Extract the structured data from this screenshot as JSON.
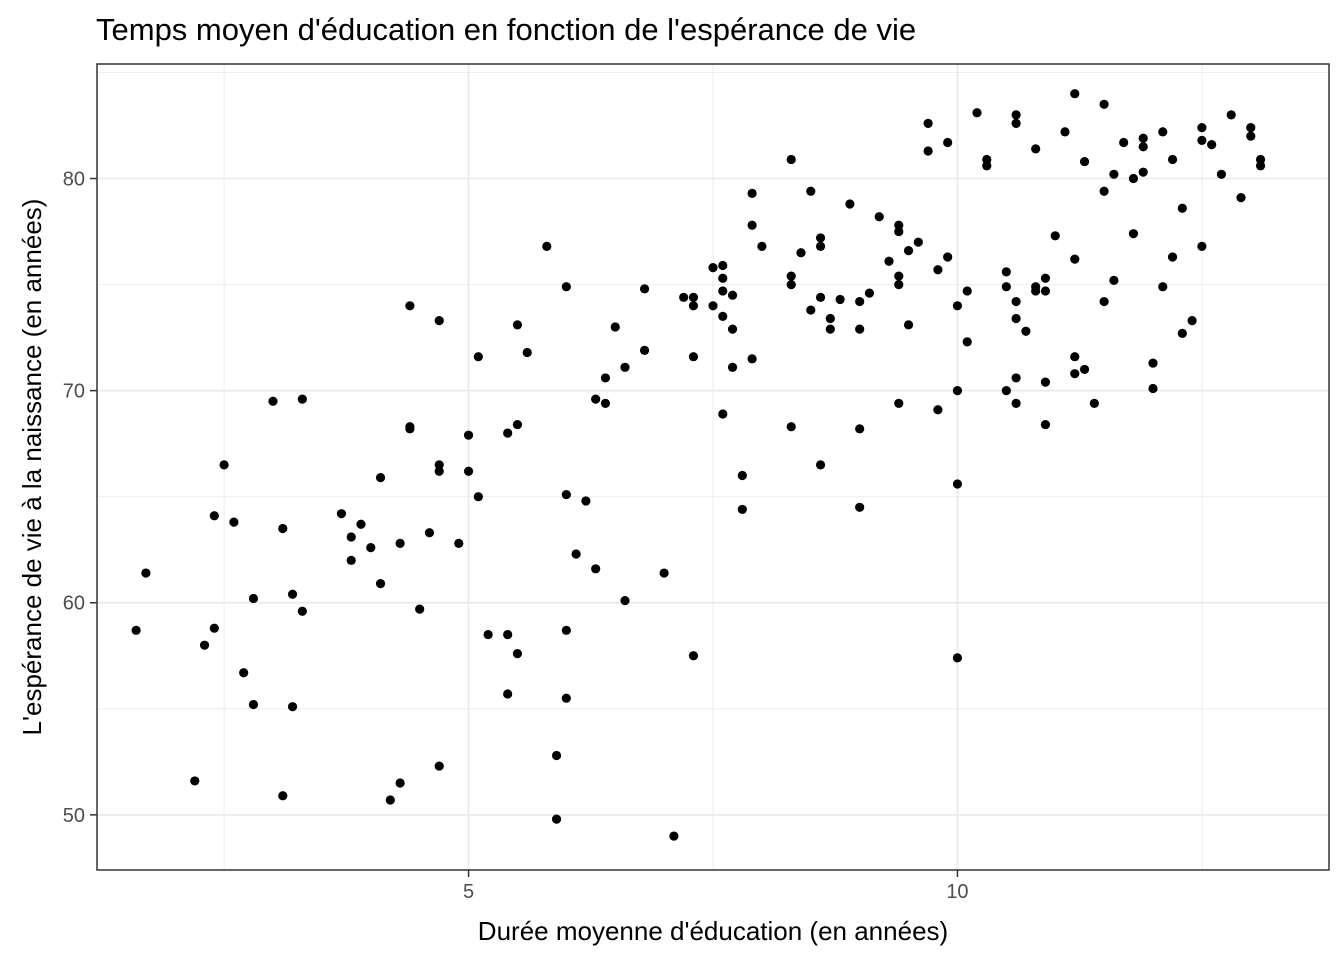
{
  "chart_data": {
    "type": "scatter",
    "title": "Temps moyen d'éducation en fonction de l'espérance de vie",
    "xlabel": "Durée moyenne d'éducation (en années)",
    "ylabel": "L'espérance de vie à la naissance (en années)",
    "xlim": [
      1.2,
      13.8
    ],
    "ylim": [
      47.4,
      85.4
    ],
    "x_ticks": [
      5,
      10
    ],
    "x_tick_labels": [
      "5",
      "10"
    ],
    "y_ticks": [
      50,
      60,
      70,
      80
    ],
    "y_tick_labels": [
      "50",
      "60",
      "70",
      "80"
    ],
    "x_minor_ticks": [
      2.5,
      7.5,
      12.5
    ],
    "y_minor_ticks": [
      55,
      65,
      75,
      85
    ],
    "grid": true,
    "point_color": "#000000",
    "panel_border_color": "#333333",
    "grid_color": "#ebebeb",
    "points": [
      [
        1.6,
        58.7
      ],
      [
        1.7,
        61.4
      ],
      [
        2.2,
        51.6
      ],
      [
        2.3,
        58.0
      ],
      [
        2.4,
        64.1
      ],
      [
        2.4,
        58.8
      ],
      [
        2.5,
        66.5
      ],
      [
        2.6,
        63.8
      ],
      [
        2.7,
        56.7
      ],
      [
        2.8,
        60.2
      ],
      [
        2.8,
        55.2
      ],
      [
        3.0,
        69.5
      ],
      [
        3.1,
        63.5
      ],
      [
        3.1,
        50.9
      ],
      [
        3.2,
        60.4
      ],
      [
        3.2,
        55.1
      ],
      [
        3.3,
        59.6
      ],
      [
        3.3,
        69.6
      ],
      [
        3.7,
        64.2
      ],
      [
        3.8,
        63.1
      ],
      [
        3.8,
        62.0
      ],
      [
        3.9,
        63.7
      ],
      [
        4.0,
        62.6
      ],
      [
        4.1,
        65.9
      ],
      [
        4.1,
        60.9
      ],
      [
        4.2,
        50.7
      ],
      [
        4.3,
        62.8
      ],
      [
        4.3,
        51.5
      ],
      [
        4.4,
        74.0
      ],
      [
        4.4,
        68.3
      ],
      [
        4.4,
        68.2
      ],
      [
        4.5,
        59.7
      ],
      [
        4.6,
        63.3
      ],
      [
        4.7,
        73.3
      ],
      [
        4.7,
        66.5
      ],
      [
        4.7,
        66.2
      ],
      [
        4.7,
        52.3
      ],
      [
        4.9,
        62.8
      ],
      [
        5.0,
        67.9
      ],
      [
        5.0,
        66.2
      ],
      [
        5.1,
        71.6
      ],
      [
        5.1,
        65.0
      ],
      [
        5.2,
        58.5
      ],
      [
        5.4,
        58.5
      ],
      [
        5.4,
        55.7
      ],
      [
        5.4,
        68.0
      ],
      [
        5.5,
        73.1
      ],
      [
        5.5,
        68.4
      ],
      [
        5.5,
        57.6
      ],
      [
        5.6,
        71.8
      ],
      [
        5.8,
        76.8
      ],
      [
        5.9,
        52.8
      ],
      [
        5.9,
        49.8
      ],
      [
        6.0,
        74.9
      ],
      [
        6.0,
        65.1
      ],
      [
        6.0,
        58.7
      ],
      [
        6.0,
        55.5
      ],
      [
        6.1,
        62.3
      ],
      [
        6.2,
        64.8
      ],
      [
        6.3,
        69.6
      ],
      [
        6.3,
        61.6
      ],
      [
        6.4,
        70.6
      ],
      [
        6.4,
        69.4
      ],
      [
        6.5,
        73.0
      ],
      [
        6.6,
        71.1
      ],
      [
        6.6,
        60.1
      ],
      [
        6.8,
        74.8
      ],
      [
        6.8,
        71.9
      ],
      [
        7.0,
        61.4
      ],
      [
        7.1,
        49.0
      ],
      [
        7.2,
        74.4
      ],
      [
        7.3,
        74.4
      ],
      [
        7.3,
        74.0
      ],
      [
        7.3,
        71.6
      ],
      [
        7.3,
        57.5
      ],
      [
        7.5,
        75.8
      ],
      [
        7.5,
        74.0
      ],
      [
        7.6,
        75.9
      ],
      [
        7.6,
        75.3
      ],
      [
        7.6,
        74.7
      ],
      [
        7.6,
        73.5
      ],
      [
        7.6,
        68.9
      ],
      [
        7.7,
        74.5
      ],
      [
        7.7,
        72.9
      ],
      [
        7.7,
        71.1
      ],
      [
        7.8,
        66.0
      ],
      [
        7.8,
        64.4
      ],
      [
        7.9,
        79.3
      ],
      [
        7.9,
        77.8
      ],
      [
        7.9,
        71.5
      ],
      [
        8.0,
        76.8
      ],
      [
        8.3,
        80.9
      ],
      [
        8.3,
        75.4
      ],
      [
        8.3,
        75.0
      ],
      [
        8.3,
        68.3
      ],
      [
        8.4,
        76.5
      ],
      [
        8.5,
        79.4
      ],
      [
        8.5,
        73.8
      ],
      [
        8.6,
        77.2
      ],
      [
        8.6,
        76.8
      ],
      [
        8.6,
        74.4
      ],
      [
        8.6,
        66.5
      ],
      [
        8.7,
        73.4
      ],
      [
        8.7,
        72.9
      ],
      [
        8.8,
        74.3
      ],
      [
        8.9,
        78.8
      ],
      [
        9.0,
        74.2
      ],
      [
        9.0,
        72.9
      ],
      [
        9.0,
        68.2
      ],
      [
        9.0,
        64.5
      ],
      [
        9.1,
        74.6
      ],
      [
        9.2,
        78.2
      ],
      [
        9.3,
        76.1
      ],
      [
        9.4,
        77.8
      ],
      [
        9.4,
        77.5
      ],
      [
        9.4,
        75.4
      ],
      [
        9.4,
        75.0
      ],
      [
        9.4,
        69.4
      ],
      [
        9.5,
        76.6
      ],
      [
        9.5,
        73.1
      ],
      [
        9.6,
        77.0
      ],
      [
        9.7,
        82.6
      ],
      [
        9.7,
        81.3
      ],
      [
        9.8,
        75.7
      ],
      [
        9.8,
        69.1
      ],
      [
        9.9,
        81.7
      ],
      [
        9.9,
        76.3
      ],
      [
        10.0,
        74.0
      ],
      [
        10.0,
        70.0
      ],
      [
        10.0,
        65.6
      ],
      [
        10.0,
        57.4
      ],
      [
        10.1,
        74.7
      ],
      [
        10.1,
        72.3
      ],
      [
        10.2,
        83.1
      ],
      [
        10.3,
        80.9
      ],
      [
        10.3,
        80.6
      ],
      [
        10.6,
        73.4
      ],
      [
        10.6,
        69.4
      ],
      [
        10.5,
        75.6
      ],
      [
        10.5,
        74.9
      ],
      [
        10.5,
        70.0
      ],
      [
        10.6,
        83.0
      ],
      [
        10.6,
        82.6
      ],
      [
        10.6,
        74.2
      ],
      [
        10.6,
        70.6
      ],
      [
        10.7,
        72.8
      ],
      [
        10.8,
        81.4
      ],
      [
        10.8,
        74.9
      ],
      [
        10.8,
        74.7
      ],
      [
        10.9,
        75.3
      ],
      [
        10.9,
        74.7
      ],
      [
        10.9,
        70.4
      ],
      [
        10.9,
        68.4
      ],
      [
        11.0,
        77.3
      ],
      [
        11.1,
        82.2
      ],
      [
        11.2,
        84.0
      ],
      [
        11.2,
        76.2
      ],
      [
        11.2,
        71.6
      ],
      [
        11.2,
        70.8
      ],
      [
        11.3,
        80.8
      ],
      [
        11.3,
        71.0
      ],
      [
        11.4,
        69.4
      ],
      [
        11.5,
        83.5
      ],
      [
        11.5,
        79.4
      ],
      [
        11.5,
        74.2
      ],
      [
        11.6,
        80.2
      ],
      [
        11.6,
        75.2
      ],
      [
        11.7,
        81.7
      ],
      [
        11.8,
        80.0
      ],
      [
        11.8,
        77.4
      ],
      [
        11.9,
        81.9
      ],
      [
        11.9,
        81.5
      ],
      [
        11.9,
        80.3
      ],
      [
        12.0,
        71.3
      ],
      [
        12.0,
        70.1
      ],
      [
        12.1,
        82.2
      ],
      [
        12.1,
        74.9
      ],
      [
        12.2,
        80.9
      ],
      [
        12.2,
        76.3
      ],
      [
        12.3,
        78.6
      ],
      [
        12.3,
        72.7
      ],
      [
        12.4,
        73.3
      ],
      [
        12.5,
        82.4
      ],
      [
        12.5,
        81.8
      ],
      [
        12.5,
        76.8
      ],
      [
        12.6,
        81.6
      ],
      [
        12.7,
        80.2
      ],
      [
        12.8,
        83.0
      ],
      [
        12.9,
        79.1
      ],
      [
        13.0,
        82.4
      ],
      [
        13.0,
        82.0
      ],
      [
        13.1,
        80.9
      ],
      [
        13.1,
        80.6
      ]
    ]
  }
}
